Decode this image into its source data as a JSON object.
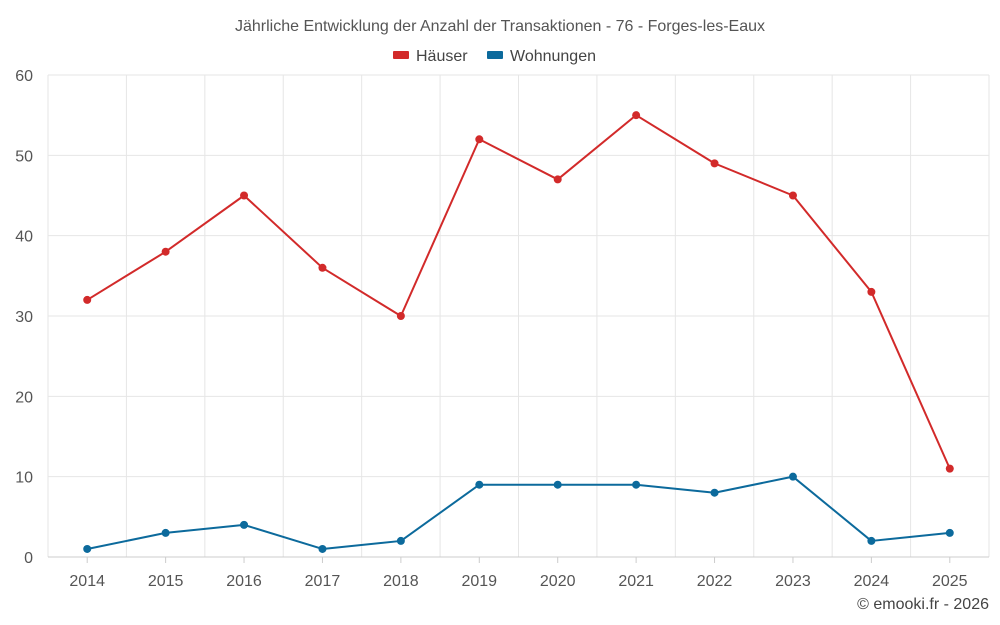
{
  "chart_data": {
    "type": "line",
    "title": "Jährliche Entwicklung der Anzahl der Transaktionen - 76 - Forges-les-Eaux",
    "categories": [
      "2014",
      "2015",
      "2016",
      "2017",
      "2018",
      "2019",
      "2020",
      "2021",
      "2022",
      "2023",
      "2024",
      "2025"
    ],
    "series": [
      {
        "name": "Häuser",
        "color": "#d22a2a",
        "values": [
          32,
          38,
          45,
          36,
          30,
          52,
          47,
          55,
          49,
          45,
          33,
          11
        ]
      },
      {
        "name": "Wohnungen",
        "color": "#0c6a9c",
        "values": [
          1,
          3,
          4,
          1,
          2,
          9,
          9,
          9,
          8,
          10,
          2,
          3
        ]
      }
    ],
    "yticks": [
      "0",
      "10",
      "20",
      "30",
      "40",
      "50",
      "60"
    ],
    "ylim": [
      0,
      60
    ],
    "grid": true,
    "legend": "top-center",
    "xlabel": "",
    "ylabel": ""
  },
  "credit": "© emooki.fr - 2026"
}
